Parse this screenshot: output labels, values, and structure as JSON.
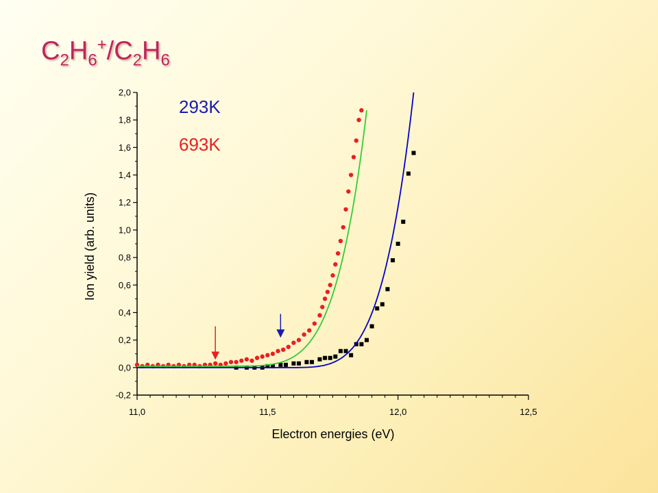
{
  "title": {
    "parts": [
      {
        "text": "C",
        "style": "normal"
      },
      {
        "text": "2",
        "style": "sub"
      },
      {
        "text": "H",
        "style": "normal"
      },
      {
        "text": "6",
        "style": "sub"
      },
      {
        "text": "+",
        "style": "sup"
      },
      {
        "text": "/C",
        "style": "normal"
      },
      {
        "text": "2",
        "style": "sub"
      },
      {
        "text": "H",
        "style": "normal"
      },
      {
        "text": "6",
        "style": "sub"
      }
    ],
    "color": "#c0245e"
  },
  "chart_data": {
    "type": "scatter",
    "xlabel": "Electron energies (eV)",
    "ylabel": "Ion yield (arb. units)",
    "xlim": [
      11.0,
      12.5
    ],
    "ylim": [
      -0.2,
      2.0
    ],
    "xticks": [
      11.0,
      11.5,
      12.0,
      12.5
    ],
    "xtick_labels": [
      "11,0",
      "11,5",
      "12,0",
      "12,5"
    ],
    "yticks": [
      -0.2,
      0.0,
      0.2,
      0.4,
      0.6,
      0.8,
      1.0,
      1.2,
      1.4,
      1.6,
      1.8,
      2.0
    ],
    "ytick_labels": [
      "-0,2",
      "0,0",
      "0,2",
      "0,4",
      "0,6",
      "0,8",
      "1,0",
      "1,2",
      "1,4",
      "1,6",
      "1,8",
      "2,0"
    ],
    "grid": false,
    "legend_position": "top-left",
    "series": [
      {
        "name": "293K",
        "color": "#1a1ab0",
        "marker": "square",
        "marker_color": "#000000",
        "fit_color": "#0000cc",
        "fit": {
          "baseline": 0.0,
          "threshold": 11.55,
          "amplitude": 2.0,
          "exponent": 4.3,
          "x_end": 12.06
        },
        "x": [
          11.38,
          11.42,
          11.45,
          11.48,
          11.5,
          11.52,
          11.55,
          11.57,
          11.6,
          11.62,
          11.65,
          11.67,
          11.7,
          11.72,
          11.74,
          11.76,
          11.78,
          11.8,
          11.82,
          11.84,
          11.86,
          11.88,
          11.9,
          11.92,
          11.94,
          11.96,
          11.98,
          12.0,
          12.02,
          12.04,
          12.06
        ],
        "y": [
          0.0,
          0.0,
          0.0,
          0.0,
          0.01,
          0.01,
          0.02,
          0.02,
          0.03,
          0.03,
          0.04,
          0.04,
          0.06,
          0.07,
          0.07,
          0.08,
          0.12,
          0.12,
          0.09,
          0.17,
          0.17,
          0.2,
          0.3,
          0.43,
          0.46,
          0.57,
          0.78,
          0.9,
          1.06,
          1.41,
          1.56
        ]
      },
      {
        "name": "693K",
        "color": "#e82020",
        "marker": "circle",
        "marker_color": "#e82020",
        "fit_color": "#33cc33",
        "fit": {
          "baseline": 0.01,
          "threshold": 11.3,
          "amplitude": 1.86,
          "exponent": 5.0,
          "x_end": 11.88
        },
        "x": [
          11.0,
          11.02,
          11.04,
          11.06,
          11.08,
          11.1,
          11.12,
          11.14,
          11.16,
          11.18,
          11.2,
          11.22,
          11.24,
          11.26,
          11.28,
          11.3,
          11.32,
          11.34,
          11.36,
          11.38,
          11.4,
          11.42,
          11.44,
          11.46,
          11.48,
          11.5,
          11.52,
          11.54,
          11.56,
          11.58,
          11.6,
          11.62,
          11.64,
          11.66,
          11.68,
          11.7,
          11.71,
          11.72,
          11.73,
          11.74,
          11.75,
          11.76,
          11.77,
          11.78,
          11.79,
          11.8,
          11.81,
          11.82,
          11.83,
          11.84,
          11.85,
          11.86
        ],
        "y": [
          0.02,
          0.01,
          0.02,
          0.01,
          0.02,
          0.01,
          0.02,
          0.01,
          0.02,
          0.01,
          0.02,
          0.02,
          0.01,
          0.02,
          0.02,
          0.03,
          0.02,
          0.03,
          0.04,
          0.04,
          0.05,
          0.06,
          0.05,
          0.07,
          0.08,
          0.09,
          0.1,
          0.12,
          0.13,
          0.15,
          0.18,
          0.2,
          0.24,
          0.27,
          0.32,
          0.38,
          0.44,
          0.5,
          0.55,
          0.6,
          0.67,
          0.75,
          0.83,
          0.92,
          1.02,
          1.15,
          1.28,
          1.4,
          1.53,
          1.65,
          1.8,
          1.87
        ]
      }
    ],
    "annotations": [
      {
        "type": "arrow",
        "x": 11.3,
        "y_from": 0.3,
        "y_to": 0.03,
        "color": "#e82020"
      },
      {
        "type": "arrow",
        "x": 11.55,
        "y_from": 0.39,
        "y_to": 0.19,
        "color": "#1a1ab0"
      }
    ]
  }
}
